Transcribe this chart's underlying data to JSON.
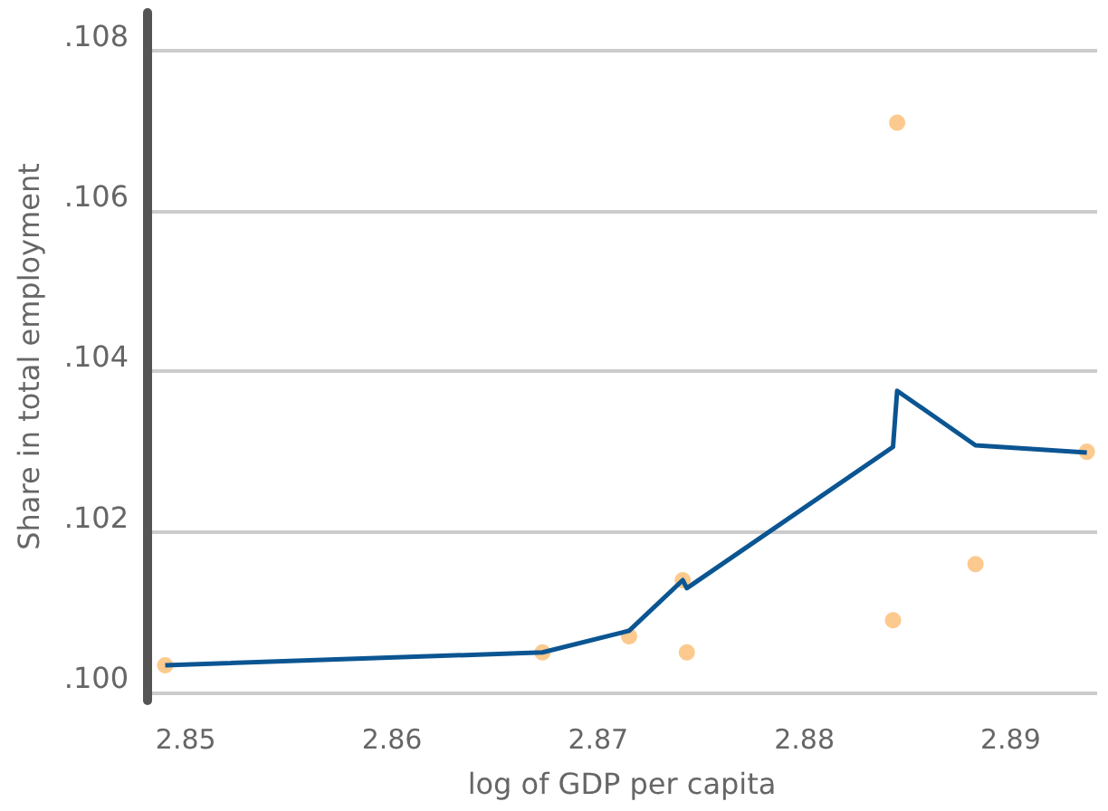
{
  "chart_data": {
    "type": "scatter",
    "xlabel": "log of GDP per capita",
    "ylabel": "Share in total employment",
    "xlim": [
      2.8481,
      2.8942
    ],
    "xticks": [
      2.85,
      2.86,
      2.87,
      2.88,
      2.89
    ],
    "ylim": [
      0.0999,
      0.10847
    ],
    "yticks": [
      {
        "value": 0.1,
        "label": ".100"
      },
      {
        "value": 0.102,
        "label": ".102"
      },
      {
        "value": 0.104,
        "label": ".104"
      },
      {
        "value": 0.106,
        "label": ".106"
      },
      {
        "value": 0.108,
        "label": ".108"
      }
    ],
    "grid": "y",
    "series": [
      {
        "color": "#fbbd72",
        "marker": "circle",
        "x": [
          2.849,
          2.8673,
          2.8715,
          2.8741,
          2.8743,
          2.8843,
          2.8845,
          2.8883,
          2.8937
        ],
        "values": [
          0.10034,
          0.1005,
          0.1007,
          0.1014,
          0.1005,
          0.1009,
          0.1071,
          0.1016,
          0.103
        ]
      },
      {
        "type": "line",
        "color": "#0b5592",
        "marker": "none",
        "line_style": "solid",
        "x": [
          2.849,
          2.8673,
          2.8715,
          2.8741,
          2.8743,
          2.8843,
          2.8845,
          2.8883,
          2.8937
        ],
        "values": [
          0.10034,
          0.1005,
          0.10077,
          0.1014,
          0.1013,
          0.10306,
          0.10376,
          0.10308,
          0.10299
        ]
      }
    ]
  }
}
